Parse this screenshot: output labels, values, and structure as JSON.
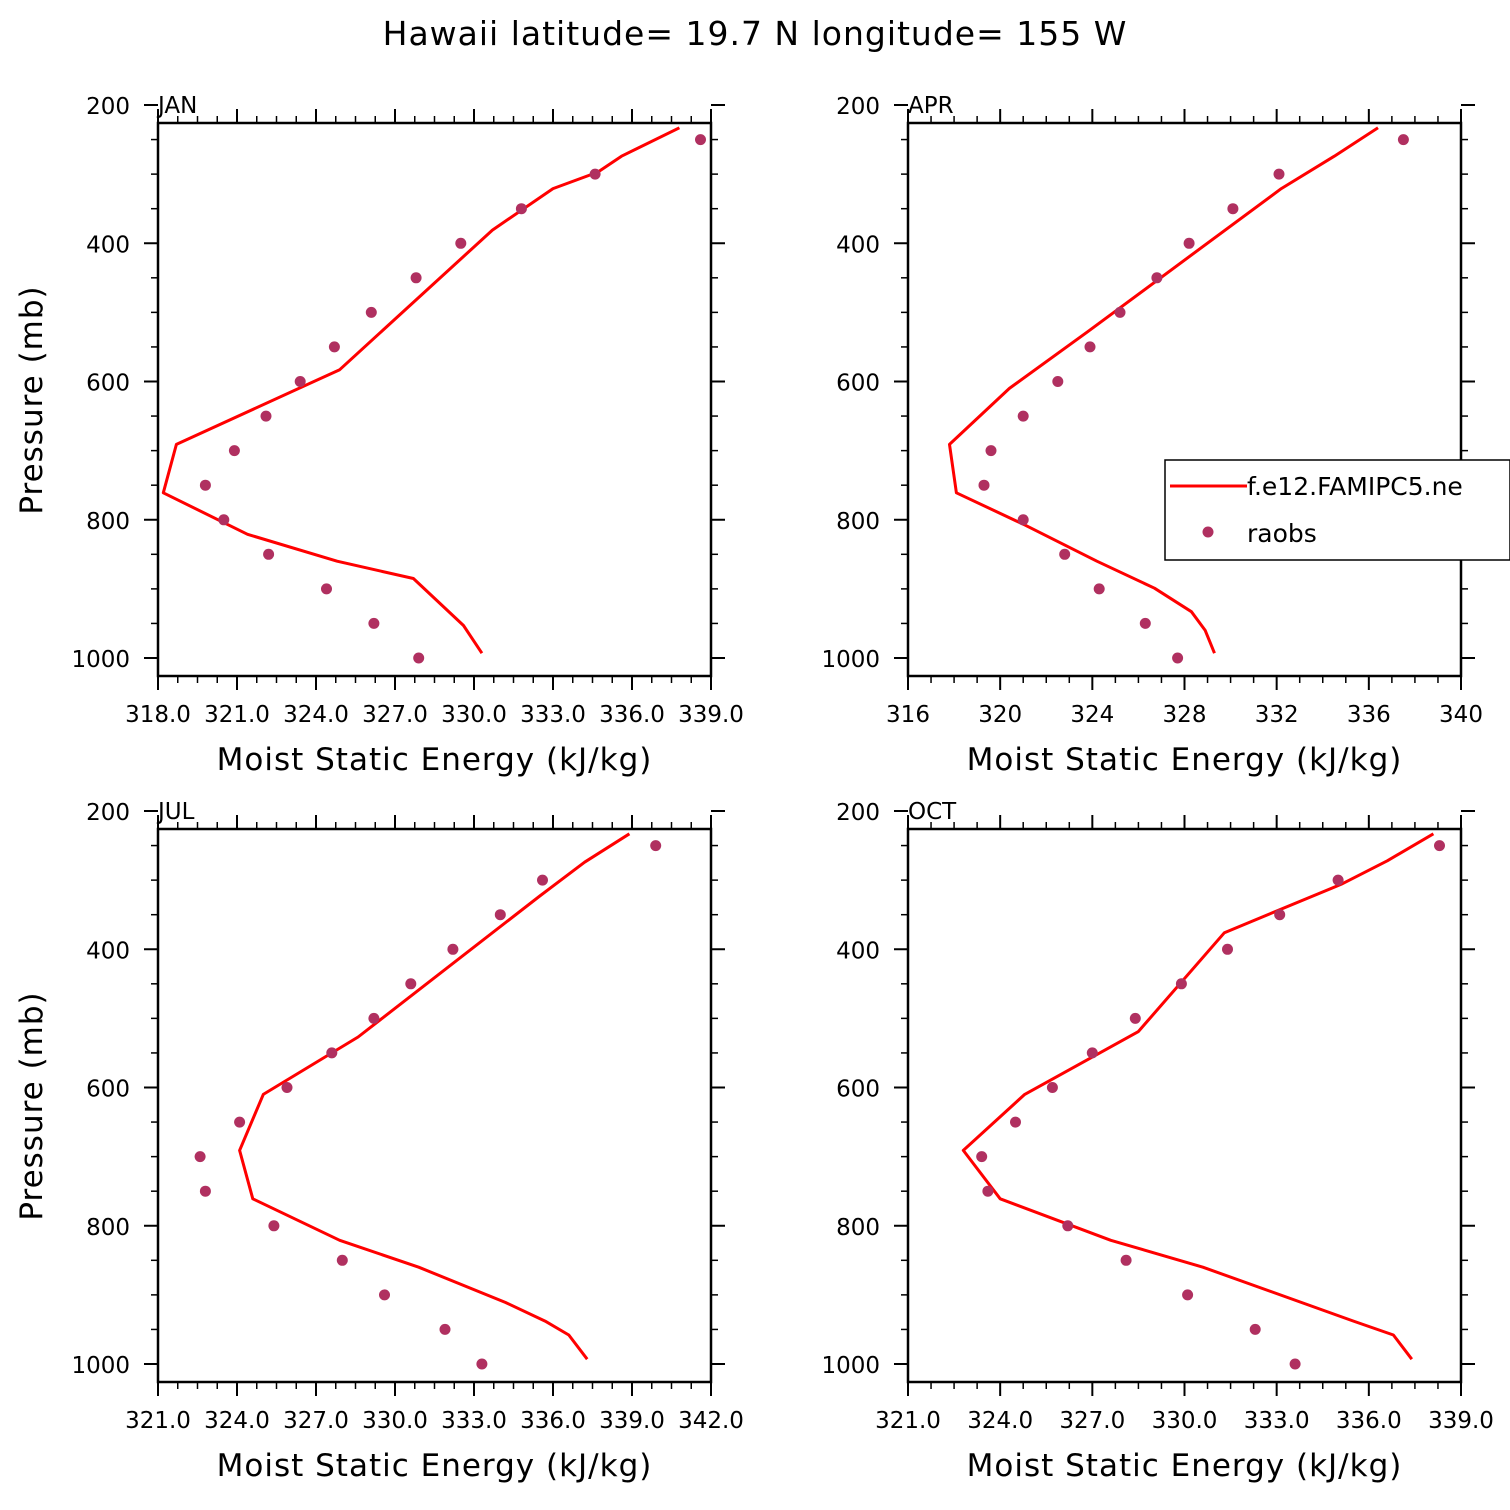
{
  "title": "Hawaii  latitude= 19.7 N longitude= 155 W",
  "legend": {
    "model_label": "f.e12.FAMIPC5.ne",
    "obs_label": "raobs"
  },
  "colors": {
    "model_line": "#ff0000",
    "obs_marker": "#b03060",
    "axis": "#000000"
  },
  "chart_data": [
    {
      "type": "line",
      "panel": "JAN",
      "xlabel": "Moist Static Energy (kJ/kg)",
      "ylabel": "Pressure (mb)",
      "xlim": [
        318.0,
        339.0
      ],
      "ylim": [
        1000,
        200
      ],
      "xticks": [
        318,
        321,
        324,
        327,
        330,
        333,
        336,
        339
      ],
      "xtick_labels": [
        "318.0",
        "321.0",
        "324.0",
        "327.0",
        "330.0",
        "333.0",
        "336.0",
        "339.0"
      ],
      "yticks": [
        200,
        400,
        600,
        800,
        1000
      ],
      "ytick_labels": [
        "200",
        "400",
        "600",
        "800",
        "1000"
      ],
      "series": [
        {
          "name": "f.e12.FAMIPC5.ne",
          "kind": "line",
          "x": [
            337.8,
            335.6,
            334.7,
            333.0,
            330.7,
            324.9,
            318.7,
            318.2,
            321.4,
            324.8,
            327.7,
            329.6,
            330.3
          ],
          "y": [
            233,
            274,
            297,
            321,
            381,
            583,
            691,
            761,
            821,
            860,
            885,
            953,
            993
          ]
        },
        {
          "name": "raobs",
          "kind": "scatter",
          "x": [
            338.6,
            334.6,
            331.8,
            329.5,
            327.8,
            326.1,
            324.7,
            323.4,
            322.1,
            320.9,
            319.8,
            320.5,
            322.2,
            324.4,
            326.2,
            327.9
          ],
          "y": [
            250,
            300,
            350,
            400,
            450,
            500,
            550,
            600,
            650,
            700,
            750,
            800,
            850,
            900,
            950,
            1000
          ]
        }
      ]
    },
    {
      "type": "line",
      "panel": "APR",
      "xlabel": "Moist Static Energy (kJ/kg)",
      "ylabel": "",
      "xlim": [
        316,
        340
      ],
      "ylim": [
        1000,
        200
      ],
      "xticks": [
        316,
        320,
        324,
        328,
        332,
        336,
        340
      ],
      "xtick_labels": [
        "316",
        "320",
        "324",
        "328",
        "332",
        "336",
        "340"
      ],
      "yticks": [
        200,
        400,
        600,
        800,
        1000
      ],
      "ytick_labels": [
        "200",
        "400",
        "600",
        "800",
        "1000"
      ],
      "legend_position": "right",
      "series": [
        {
          "name": "f.e12.FAMIPC5.ne",
          "kind": "line",
          "x": [
            336.4,
            334.5,
            332.2,
            323.8,
            320.4,
            317.8,
            318.1,
            321.1,
            324.2,
            326.7,
            328.3,
            328.9,
            329.3
          ],
          "y": [
            233,
            274,
            321,
            528,
            610,
            691,
            761,
            808,
            860,
            899,
            933,
            960,
            993
          ]
        },
        {
          "name": "raobs",
          "kind": "scatter",
          "x": [
            337.5,
            332.1,
            330.1,
            328.2,
            326.8,
            325.2,
            323.9,
            322.5,
            321.0,
            319.6,
            319.3,
            321.0,
            322.8,
            324.3,
            326.3,
            327.7
          ],
          "y": [
            250,
            300,
            350,
            400,
            450,
            500,
            550,
            600,
            650,
            700,
            750,
            800,
            850,
            900,
            950,
            1000
          ]
        }
      ]
    },
    {
      "type": "line",
      "panel": "JUL",
      "xlabel": "Moist Static Energy (kJ/kg)",
      "ylabel": "Pressure (mb)",
      "xlim": [
        321.0,
        342.0
      ],
      "ylim": [
        1000,
        200
      ],
      "xticks": [
        321,
        324,
        327,
        330,
        333,
        336,
        339,
        342
      ],
      "xtick_labels": [
        "321.0",
        "324.0",
        "327.0",
        "330.0",
        "333.0",
        "336.0",
        "339.0",
        "342.0"
      ],
      "yticks": [
        200,
        400,
        600,
        800,
        1000
      ],
      "ytick_labels": [
        "200",
        "400",
        "600",
        "800",
        "1000"
      ],
      "series": [
        {
          "name": "f.e12.FAMIPC5.ne",
          "kind": "line",
          "x": [
            338.9,
            337.2,
            335.5,
            328.6,
            325.0,
            324.1,
            324.6,
            327.9,
            330.9,
            334.2,
            335.7,
            336.6,
            337.3
          ],
          "y": [
            233,
            274,
            323,
            527,
            610,
            691,
            761,
            821,
            860,
            911,
            938,
            958,
            993
          ]
        },
        {
          "name": "raobs",
          "kind": "scatter",
          "x": [
            339.9,
            335.6,
            334.0,
            332.2,
            330.6,
            329.2,
            327.6,
            325.9,
            324.1,
            322.6,
            322.8,
            325.4,
            328.0,
            329.6,
            331.9,
            333.3
          ],
          "y": [
            250,
            300,
            350,
            400,
            450,
            500,
            550,
            600,
            650,
            700,
            750,
            800,
            850,
            900,
            950,
            1000
          ]
        }
      ]
    },
    {
      "type": "line",
      "panel": "OCT",
      "xlabel": "Moist Static Energy (kJ/kg)",
      "ylabel": "",
      "xlim": [
        321.0,
        339.0
      ],
      "ylim": [
        1000,
        200
      ],
      "xticks": [
        321,
        324,
        327,
        330,
        333,
        336,
        339
      ],
      "xtick_labels": [
        "321.0",
        "324.0",
        "327.0",
        "330.0",
        "333.0",
        "336.0",
        "339.0"
      ],
      "yticks": [
        200,
        400,
        600,
        800,
        1000
      ],
      "ytick_labels": [
        "200",
        "400",
        "600",
        "800",
        "1000"
      ],
      "series": [
        {
          "name": "f.e12.FAMIPC5.ne",
          "kind": "line",
          "x": [
            338.1,
            336.6,
            335.1,
            331.3,
            328.5,
            324.8,
            322.8,
            324.0,
            327.6,
            330.6,
            335.5,
            336.8,
            337.4
          ],
          "y": [
            233,
            272,
            306,
            376,
            519,
            610,
            691,
            761,
            821,
            860,
            938,
            958,
            993
          ]
        },
        {
          "name": "raobs",
          "kind": "scatter",
          "x": [
            338.3,
            335.0,
            333.1,
            331.4,
            329.9,
            328.4,
            327.0,
            325.7,
            324.5,
            323.4,
            323.6,
            326.2,
            328.1,
            330.1,
            332.3,
            333.6
          ],
          "y": [
            250,
            300,
            350,
            400,
            450,
            500,
            550,
            600,
            650,
            700,
            750,
            800,
            850,
            900,
            950,
            1000
          ]
        }
      ]
    }
  ]
}
